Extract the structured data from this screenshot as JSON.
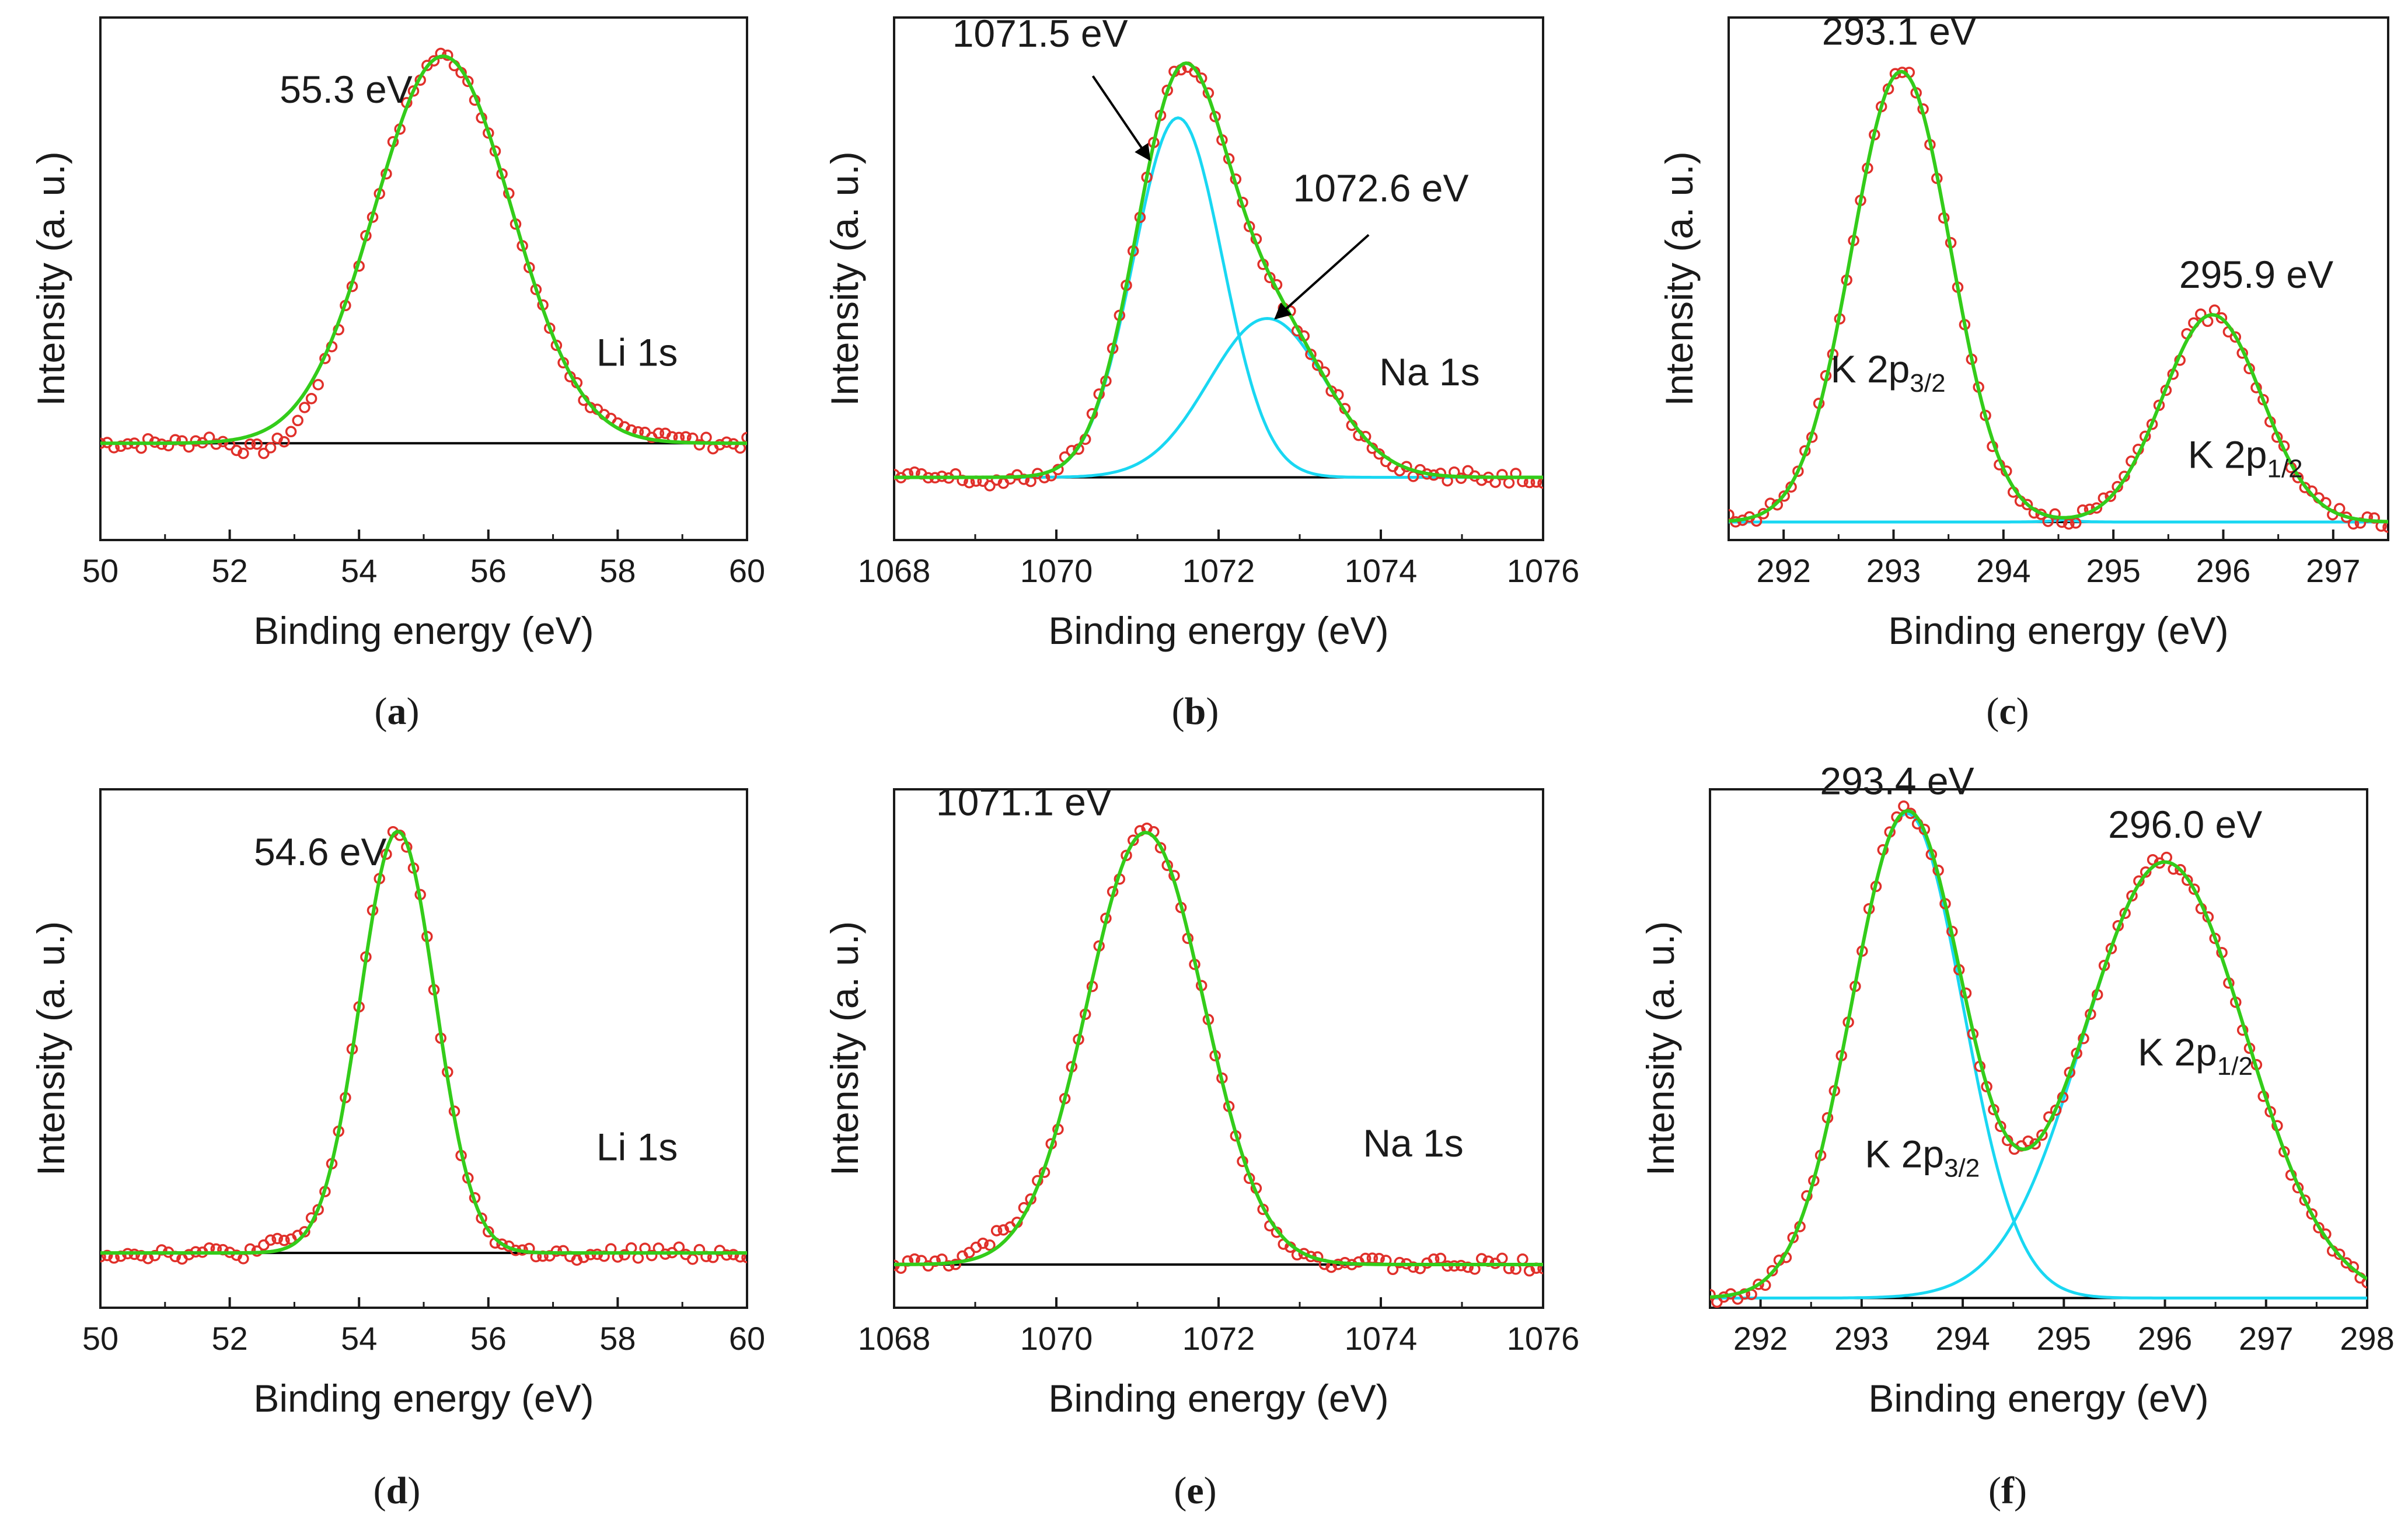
{
  "colors": {
    "data": "#e0302a",
    "fit": "#33cc1a",
    "component": "#19d7f2",
    "baseline": "#000000",
    "axis": "#1a1a1a"
  },
  "chart_data": [
    {
      "type": "line",
      "panel": "a",
      "panel_label": "(a)",
      "panel_letter": "a",
      "xlabel": "Binding energy (eV)",
      "ylabel": "Intensity (a. u.)",
      "xlim": [
        50,
        60
      ],
      "ylim": [
        -0.25,
        1.1
      ],
      "xticks": [
        "50",
        "52",
        "54",
        "56",
        "58",
        "60"
      ],
      "element_label": "Li 1s",
      "element_label_pos": [
        58.3,
        0.2
      ],
      "peaks": [
        {
          "center": 55.3,
          "height": 1.0,
          "width": 1.06
        }
      ],
      "components": false,
      "noise": [
        {
          "center": 52.8,
          "amp": -0.055,
          "width": 0.5
        },
        {
          "center": 58.7,
          "amp": 0.025,
          "width": 0.25
        },
        {
          "center": 51.7,
          "amp": 0.012,
          "width": 0.2
        }
      ],
      "annotations": [
        {
          "text": "55.3 eV",
          "x": 53.8,
          "y": 0.88,
          "arrow": false
        }
      ]
    },
    {
      "type": "line",
      "panel": "b",
      "panel_label": "(b)",
      "panel_letter": "b",
      "xlabel": "Binding energy (eV)",
      "ylabel": "Intensity (a. u.)",
      "xlim": [
        1068,
        1076
      ],
      "ylim": [
        -0.15,
        1.1
      ],
      "xticks": [
        "1068",
        "1070",
        "1072",
        "1074",
        "1076"
      ],
      "element_label": "Na 1s",
      "element_label_pos": [
        1074.6,
        0.22
      ],
      "peaks": [
        {
          "center": 1071.5,
          "height": 0.86,
          "width": 0.55
        },
        {
          "center": 1072.6,
          "height": 0.38,
          "width": 0.72
        }
      ],
      "components": true,
      "noise": [
        {
          "center": 1069.3,
          "amp": -0.012,
          "width": 0.3
        }
      ],
      "annotations": [
        {
          "text": "1071.5 eV",
          "x": 1069.8,
          "y": 1.03,
          "arrow": true,
          "ax": 1070.45,
          "ay": 0.96,
          "tx": 1071.15,
          "ty": 0.76
        },
        {
          "text": "1072.6 eV",
          "x": 1074.0,
          "y": 0.66,
          "arrow": true,
          "ax": 1073.85,
          "ay": 0.58,
          "tx": 1072.7,
          "ty": 0.38
        }
      ]
    },
    {
      "type": "line",
      "panel": "c",
      "panel_label": "(c)",
      "panel_letter": "c",
      "xlabel": "Binding energy (eV)",
      "ylabel": "Intensity (a. u.)",
      "xlim": [
        291.5,
        297.5
      ],
      "ylim": [
        -0.04,
        1.12
      ],
      "xticks": [
        "292",
        "293",
        "294",
        "295",
        "296",
        "297"
      ],
      "element_label": "",
      "element_label_pos": [
        0,
        0
      ],
      "peaks": [
        {
          "center": 293.07,
          "height": 1.0,
          "width": 0.45
        },
        {
          "center": 295.9,
          "height": 0.46,
          "width": 0.45
        }
      ],
      "components": true,
      "noise": [],
      "annotations": [
        {
          "text": "293.1 eV",
          "x": 293.05,
          "y": 1.06,
          "arrow": false
        },
        {
          "text": "295.9 eV",
          "x": 296.3,
          "y": 0.52,
          "arrow": false
        }
      ],
      "rich_labels": [
        {
          "main": "K 2p",
          "sub": "3/2",
          "x": 292.95,
          "y": 0.31
        },
        {
          "main": "K 2p",
          "sub": "1/2",
          "x": 296.2,
          "y": 0.12
        }
      ]
    },
    {
      "type": "line",
      "panel": "d",
      "panel_label": "(d)",
      "panel_letter": "d",
      "xlabel": "Binding energy (eV)",
      "ylabel": "Intensity (a. u.)",
      "xlim": [
        50,
        60
      ],
      "ylim": [
        -0.13,
        1.1
      ],
      "xticks": [
        "50",
        "52",
        "54",
        "56",
        "58",
        "60"
      ],
      "element_label": "Li 1s",
      "element_label_pos": [
        58.3,
        0.22
      ],
      "peaks": [
        {
          "center": 54.6,
          "height": 1.0,
          "width": 0.58
        }
      ],
      "components": false,
      "noise": [
        {
          "center": 52.8,
          "amp": 0.02,
          "width": 0.2
        },
        {
          "center": 57.5,
          "amp": -0.018,
          "width": 0.2
        }
      ],
      "annotations": [
        {
          "text": "54.6 eV",
          "x": 53.4,
          "y": 0.92,
          "arrow": false
        }
      ]
    },
    {
      "type": "line",
      "panel": "e",
      "panel_label": "(e)",
      "panel_letter": "e",
      "xlabel": "Binding energy (eV)",
      "ylabel": "Intensity (a. u.)",
      "xlim": [
        1068,
        1076
      ],
      "ylim": [
        -0.1,
        1.1
      ],
      "xticks": [
        "1068",
        "1070",
        "1072",
        "1074",
        "1076"
      ],
      "element_label": "Na 1s",
      "element_label_pos": [
        1074.4,
        0.25
      ],
      "peaks": [
        {
          "center": 1071.1,
          "height": 1.0,
          "width": 0.72
        }
      ],
      "components": false,
      "noise": [
        {
          "center": 1069.3,
          "amp": 0.025,
          "width": 0.3
        }
      ],
      "annotations": [
        {
          "text": "1071.1 eV",
          "x": 1069.6,
          "y": 1.04,
          "arrow": false
        }
      ]
    },
    {
      "type": "line",
      "panel": "f",
      "panel_label": "(f)",
      "panel_letter": "f",
      "xlabel": "Binding energy (eV)",
      "ylabel": "Intensity (a. u.)",
      "xlim": [
        291.5,
        298
      ],
      "ylim": [
        -0.02,
        1.05
      ],
      "xticks": [
        "292",
        "293",
        "294",
        "295",
        "296",
        "297",
        "298"
      ],
      "element_label": "",
      "element_label_pos": [
        0,
        0
      ],
      "peaks": [
        {
          "center": 293.45,
          "height": 1.0,
          "width": 0.55
        },
        {
          "center": 296.0,
          "height": 0.9,
          "width": 0.8
        }
      ],
      "components": true,
      "noise": [],
      "annotations": [
        {
          "text": "293.4 eV",
          "x": 293.35,
          "y": 1.04,
          "arrow": false
        },
        {
          "text": "296.0 eV",
          "x": 296.2,
          "y": 0.95,
          "arrow": false
        }
      ],
      "rich_labels": [
        {
          "main": "K 2p",
          "sub": "3/2",
          "x": 293.6,
          "y": 0.27
        },
        {
          "main": "K 2p",
          "sub": "1/2",
          "x": 296.3,
          "y": 0.48
        }
      ]
    }
  ]
}
